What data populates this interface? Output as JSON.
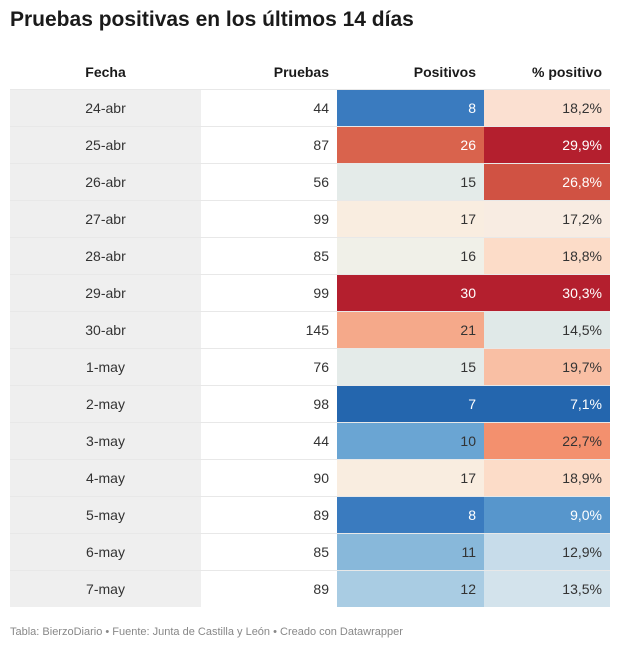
{
  "title": "Pruebas positivas en los últimos 14 días",
  "footer": "Tabla: BierzoDiario • Fuente: Junta de Castilla y León • Creado con Datawrapper",
  "chart_data": {
    "type": "table",
    "columns": [
      "Fecha",
      "Pruebas",
      "Positivos",
      "% positivo"
    ],
    "rows": [
      {
        "fecha": "24-abr",
        "pruebas": "44",
        "positivos": "8",
        "pct": "18,2%",
        "pos_color": "#3a7bbf",
        "pct_color": "#fbe0d1"
      },
      {
        "fecha": "25-abr",
        "pruebas": "87",
        "positivos": "26",
        "pct": "29,9%",
        "pos_color": "#d9634d",
        "pct_color": "#b41f2e"
      },
      {
        "fecha": "26-abr",
        "pruebas": "56",
        "positivos": "15",
        "pct": "26,8%",
        "pos_color": "#e4ebe9",
        "pct_color": "#d05243"
      },
      {
        "fecha": "27-abr",
        "pruebas": "99",
        "positivos": "17",
        "pct": "17,2%",
        "pos_color": "#f9ede0",
        "pct_color": "#f8ece2"
      },
      {
        "fecha": "28-abr",
        "pruebas": "85",
        "positivos": "16",
        "pct": "18,8%",
        "pos_color": "#f0f0e8",
        "pct_color": "#fcdcc8"
      },
      {
        "fecha": "29-abr",
        "pruebas": "99",
        "positivos": "30",
        "pct": "30,3%",
        "pos_color": "#b41f2e",
        "pct_color": "#b41f2e"
      },
      {
        "fecha": "30-abr",
        "pruebas": "145",
        "positivos": "21",
        "pct": "14,5%",
        "pos_color": "#f5a98a",
        "pct_color": "#e0e9e8"
      },
      {
        "fecha": "1-may",
        "pruebas": "76",
        "positivos": "15",
        "pct": "19,7%",
        "pos_color": "#e4ebe9",
        "pct_color": "#f9bfa4"
      },
      {
        "fecha": "2-may",
        "pruebas": "98",
        "positivos": "7",
        "pct": "7,1%",
        "pos_color": "#2466ae",
        "pct_color": "#2466ae"
      },
      {
        "fecha": "3-may",
        "pruebas": "44",
        "positivos": "10",
        "pct": "22,7%",
        "pos_color": "#6aa5d3",
        "pct_color": "#f3906e"
      },
      {
        "fecha": "4-may",
        "pruebas": "90",
        "positivos": "17",
        "pct": "18,9%",
        "pos_color": "#f9ede0",
        "pct_color": "#fcdcc8"
      },
      {
        "fecha": "5-may",
        "pruebas": "89",
        "positivos": "8",
        "pct": "9,0%",
        "pos_color": "#3a7bbf",
        "pct_color": "#5796cc"
      },
      {
        "fecha": "6-may",
        "pruebas": "85",
        "positivos": "11",
        "pct": "12,9%",
        "pos_color": "#88b8da",
        "pct_color": "#c7dcea"
      },
      {
        "fecha": "7-may",
        "pruebas": "89",
        "positivos": "12",
        "pct": "13,5%",
        "pos_color": "#a9cce3",
        "pct_color": "#d3e3ec"
      }
    ]
  }
}
